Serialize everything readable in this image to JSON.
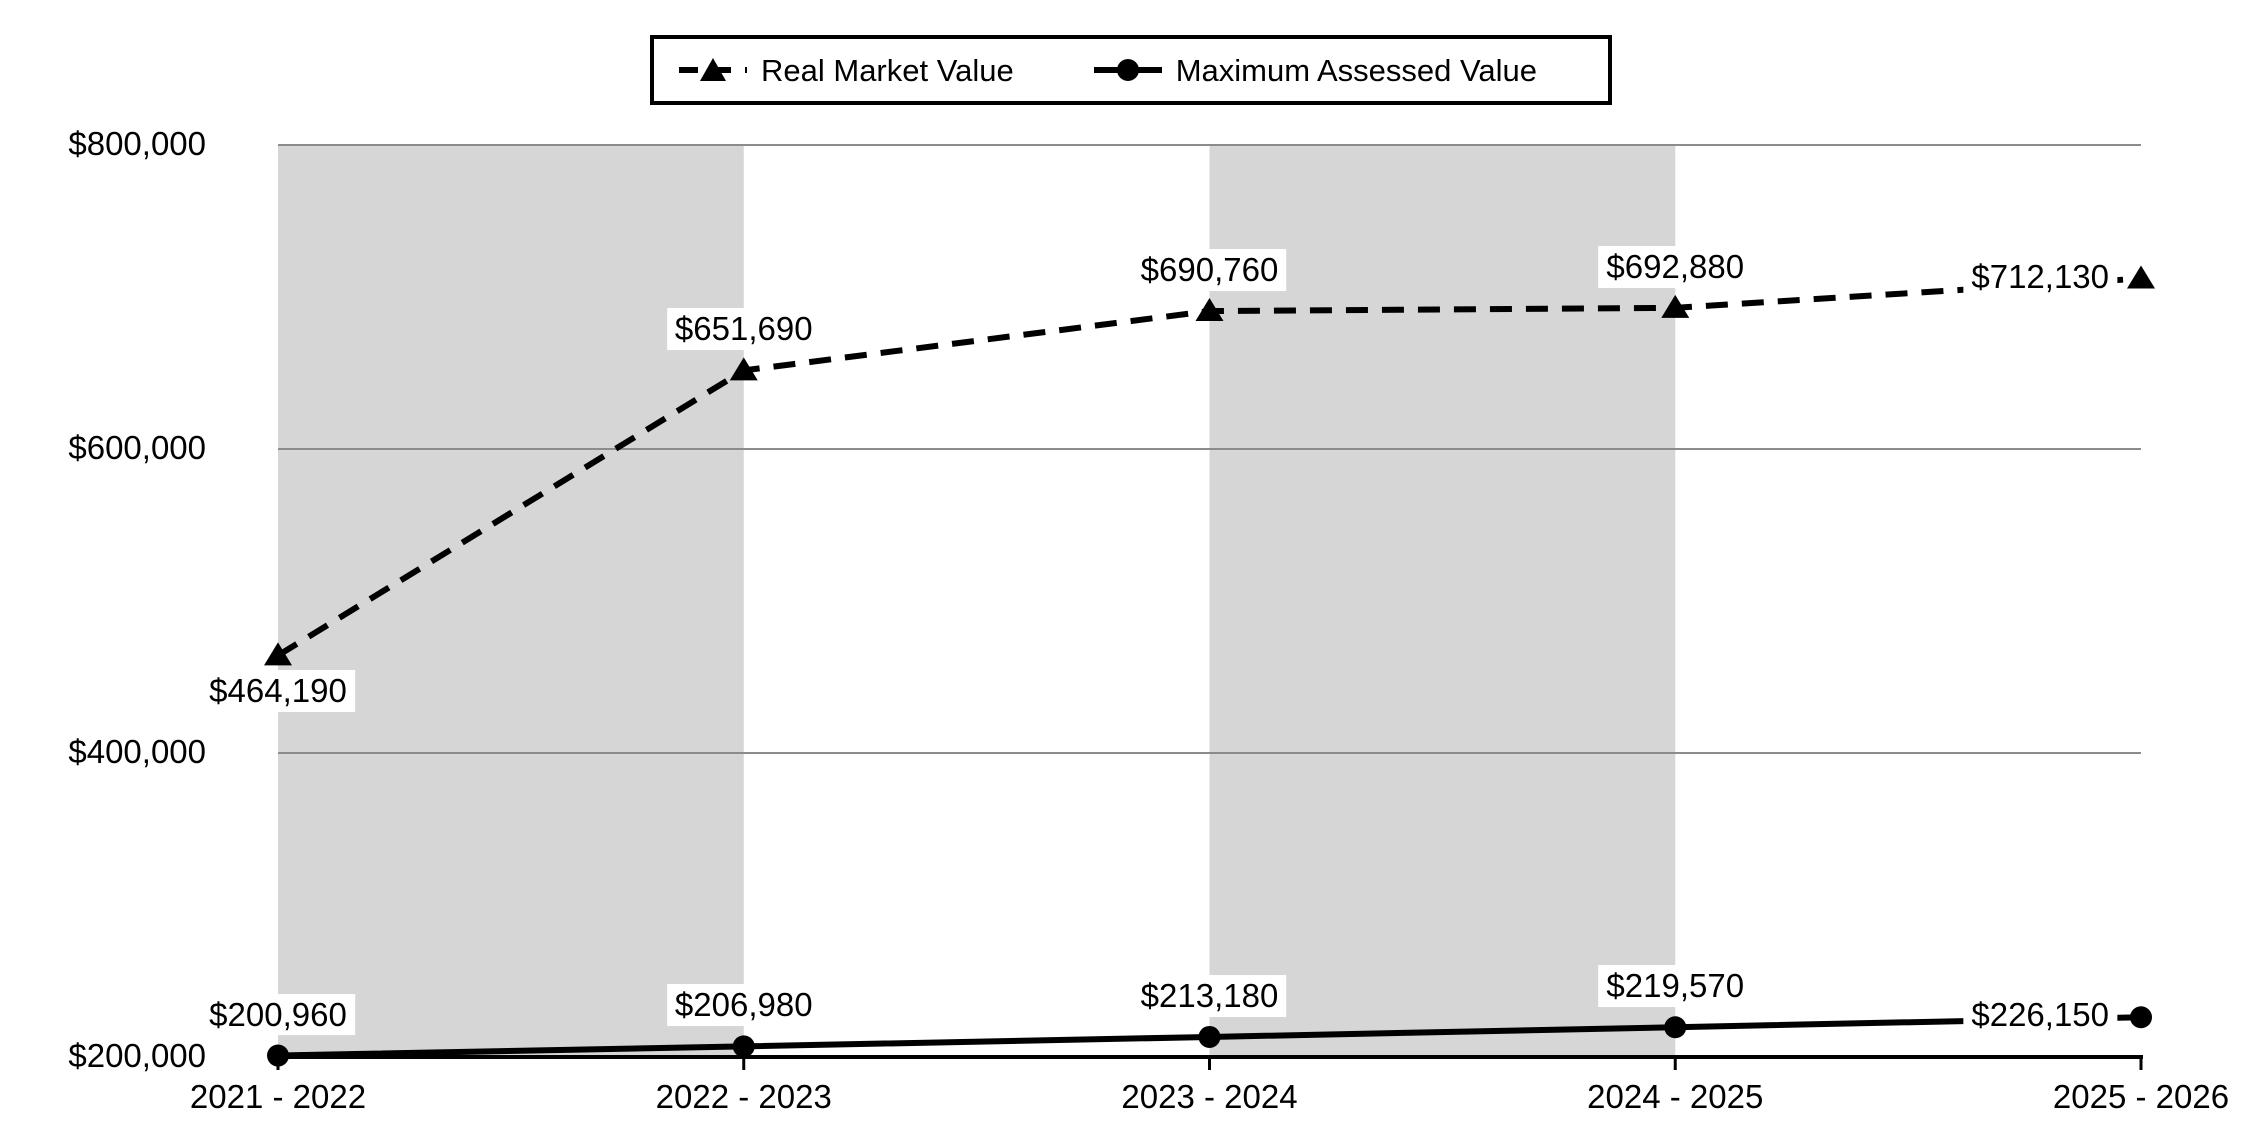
{
  "chart_data": {
    "type": "line",
    "title": "",
    "xlabel": "",
    "ylabel": "",
    "categories": [
      "2021 - 2022",
      "2022 - 2023",
      "2023 - 2024",
      "2024 - 2025",
      "2025 - 2026"
    ],
    "series": [
      {
        "name": "Real Market Value",
        "line_style": "dashed",
        "marker": "triangle",
        "color": "#000000",
        "values": [
          464190,
          651690,
          690760,
          692880,
          712130
        ],
        "labels": [
          "$464,190",
          "$651,690",
          "$690,760",
          "$692,880",
          "$712,130"
        ],
        "label_positions": [
          "below",
          "above",
          "above",
          "above",
          "left"
        ]
      },
      {
        "name": "Maximum Assessed Value",
        "line_style": "solid",
        "marker": "circle",
        "color": "#000000",
        "values": [
          200960,
          206980,
          213180,
          219570,
          226150
        ],
        "labels": [
          "$200,960",
          "$206,980",
          "$213,180",
          "$219,570",
          "$226,150"
        ],
        "label_positions": [
          "above",
          "above",
          "above",
          "above",
          "left"
        ]
      }
    ],
    "ylim": [
      200000,
      800000
    ],
    "yticks": [
      {
        "value": 200000,
        "label": "$200,000"
      },
      {
        "value": 400000,
        "label": "$400,000"
      },
      {
        "value": 600000,
        "label": "$600,000"
      },
      {
        "value": 800000,
        "label": "$800,000"
      }
    ],
    "grid": true,
    "legend_position": "top-center",
    "band_pairs": [
      [
        0,
        1
      ],
      [
        2,
        3
      ]
    ]
  },
  "colors": {
    "band": "#d6d6d6",
    "gridline": "#8c8c8c",
    "axis": "#000000",
    "series": "#000000",
    "label_bg": "#ffffff",
    "text": "#000000"
  }
}
